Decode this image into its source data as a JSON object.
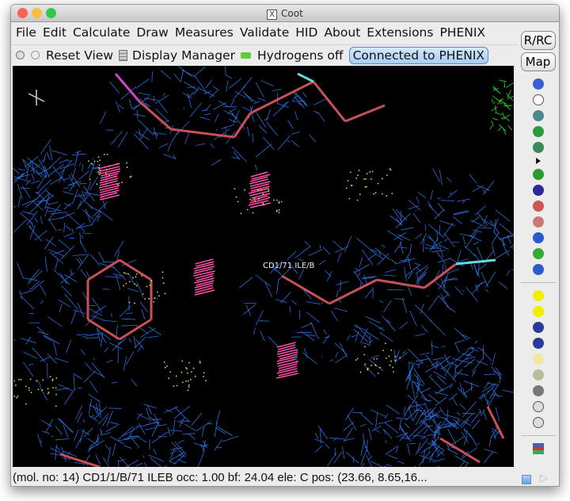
{
  "window": {
    "title": "Coot",
    "traffic_light_colors": [
      "#fc605b",
      "#fdbc40",
      "#34c84a"
    ]
  },
  "menu": [
    "File",
    "Edit",
    "Calculate",
    "Draw",
    "Measures",
    "Validate",
    "HID",
    "About",
    "Extensions",
    "PHENIX"
  ],
  "toolbar": {
    "reset_view": "Reset View",
    "display_manager": "Display Manager",
    "hydrogens": "Hydrogens off",
    "phenix_status": "Connected to PHENIX"
  },
  "side": {
    "rrc": "R/RC",
    "map": "Map",
    "icons": [
      "refine-sphere",
      "centre-atom",
      "rigid-body-fit",
      "real-space-refine",
      "regularize",
      "more",
      "auto-fit-rotamer",
      "rotamers",
      "edit-chi-angles",
      "torsion-general",
      "flip-peptide",
      "add-terminal-residue",
      "backbone-torsion",
      "delete",
      "find-waters",
      "add-atom",
      "place-atom",
      "add-alt-conf",
      "mutate",
      "clear-pending",
      "undo",
      "redo",
      "display-control"
    ]
  },
  "viewer": {
    "atom_label": "CD1/71 ILE/B",
    "colors": {
      "map": "#2a6fe0",
      "bonds": "#c8505a",
      "contacts": "#ff4fa8",
      "dots": "#e8d84a",
      "green_map": "#22dd22"
    }
  },
  "status": {
    "text": "(mol. no: 14)  CD1/1/B/71 ILEB occ:  1.00 bf: 24.04 ele:  C pos: (23.66, 8.65,16..."
  }
}
